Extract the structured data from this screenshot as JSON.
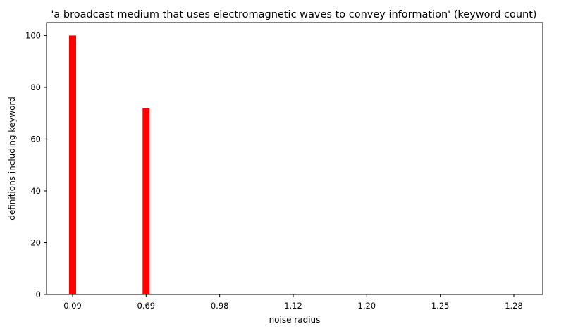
{
  "chart_data": {
    "type": "bar",
    "title": "'a broadcast medium that uses electromagnetic waves to convey information' (keyword count)",
    "xlabel": "noise radius",
    "ylabel": "definitions including keyword",
    "categories": [
      "0.09",
      "0.69",
      "0.98",
      "1.12",
      "1.20",
      "1.25",
      "1.28"
    ],
    "values": [
      100,
      72,
      0,
      0,
      0,
      0,
      0
    ],
    "ylim": [
      0,
      105
    ],
    "yticks": [
      0,
      20,
      40,
      60,
      80,
      100
    ],
    "bar_color": "#ff0000",
    "grid": false,
    "legend": "none"
  }
}
